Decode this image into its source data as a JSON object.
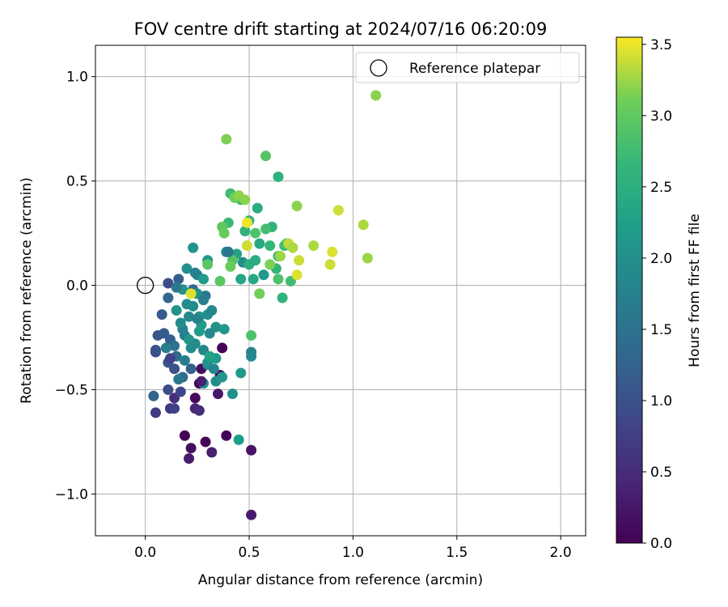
{
  "chart_data": {
    "type": "scatter",
    "title": "FOV centre drift starting at 2024/07/16 06:20:09",
    "xlabel": "Angular distance from reference (arcmin)",
    "ylabel": "Rotation from reference (arcmin)",
    "xlim": [
      -0.24,
      2.12
    ],
    "ylim": [
      -1.2,
      1.15
    ],
    "xticks": [
      0.0,
      0.5,
      1.0,
      1.5,
      2.0
    ],
    "xtick_labels": [
      "0.0",
      "0.5",
      "1.0",
      "1.5",
      "2.0"
    ],
    "yticks": [
      -1.0,
      -0.5,
      0.0,
      0.5,
      1.0
    ],
    "ytick_labels": [
      "−1.0",
      "−0.5",
      "0.0",
      "0.5",
      "1.0"
    ],
    "grid": true,
    "legend": {
      "position": "top-right",
      "entries": [
        "Reference platepar"
      ]
    },
    "reference_point": {
      "x": 0.0,
      "y": 0.0,
      "label": "Reference platepar"
    },
    "colorbar": {
      "label": "Hours from first FF file",
      "range": [
        0.0,
        3.55
      ],
      "ticks": [
        0.0,
        0.5,
        1.0,
        1.5,
        2.0,
        2.5,
        3.0,
        3.5
      ],
      "tick_labels": [
        "0.0",
        "0.5",
        "1.0",
        "1.5",
        "2.0",
        "2.5",
        "3.0",
        "3.5"
      ],
      "colormap": "viridis"
    },
    "points": [
      [
        0.19,
        -0.72,
        0.05
      ],
      [
        0.22,
        -0.78,
        0.15
      ],
      [
        0.21,
        -0.83,
        0.3
      ],
      [
        0.29,
        -0.75,
        0.05
      ],
      [
        0.32,
        -0.8,
        0.35
      ],
      [
        0.39,
        -0.72,
        0.05
      ],
      [
        0.51,
        -0.79,
        0.2
      ],
      [
        0.51,
        -1.1,
        0.3
      ],
      [
        0.24,
        -0.54,
        0.1
      ],
      [
        0.35,
        -0.52,
        0.25
      ],
      [
        0.26,
        -0.47,
        0.05
      ],
      [
        0.36,
        -0.43,
        0.1
      ],
      [
        0.37,
        -0.3,
        0.05
      ],
      [
        0.27,
        -0.4,
        0.15
      ],
      [
        0.24,
        -0.59,
        0.4
      ],
      [
        0.26,
        -0.6,
        0.5
      ],
      [
        0.14,
        -0.54,
        0.55
      ],
      [
        0.12,
        -0.59,
        0.65
      ],
      [
        0.14,
        -0.59,
        0.8
      ],
      [
        0.17,
        -0.51,
        0.85
      ],
      [
        0.05,
        -0.61,
        0.7
      ],
      [
        0.04,
        -0.53,
        1.25
      ],
      [
        0.11,
        -0.5,
        0.95
      ],
      [
        0.05,
        -0.32,
        0.9
      ],
      [
        0.05,
        -0.31,
        1.0
      ],
      [
        0.06,
        -0.24,
        1.05
      ],
      [
        0.09,
        -0.23,
        1.15
      ],
      [
        0.12,
        -0.26,
        1.2
      ],
      [
        0.11,
        -0.37,
        1.1
      ],
      [
        0.14,
        -0.4,
        1.0
      ],
      [
        0.08,
        -0.14,
        1.15
      ],
      [
        0.11,
        -0.06,
        1.3
      ],
      [
        0.11,
        0.01,
        0.95
      ],
      [
        0.16,
        0.03,
        1.2
      ],
      [
        0.22,
        -0.4,
        1.25
      ],
      [
        0.18,
        -0.44,
        1.35
      ],
      [
        0.15,
        -0.34,
        1.4
      ],
      [
        0.14,
        -0.29,
        1.5
      ],
      [
        0.19,
        -0.24,
        1.65
      ],
      [
        0.18,
        -0.21,
        1.75
      ],
      [
        0.21,
        -0.15,
        1.9
      ],
      [
        0.2,
        -0.09,
        1.95
      ],
      [
        0.18,
        -0.02,
        2.05
      ],
      [
        0.23,
        -0.1,
        1.95
      ],
      [
        0.26,
        -0.15,
        2.1
      ],
      [
        0.3,
        -0.14,
        2.0
      ],
      [
        0.32,
        -0.12,
        1.85
      ],
      [
        0.29,
        -0.05,
        1.6
      ],
      [
        0.23,
        -0.02,
        1.4
      ],
      [
        0.25,
        -0.04,
        2.0
      ],
      [
        0.2,
        0.08,
        2.0
      ],
      [
        0.23,
        0.18,
        2.05
      ],
      [
        0.25,
        0.05,
        1.85
      ],
      [
        0.3,
        0.12,
        2.1
      ],
      [
        0.28,
        0.03,
        2.2
      ],
      [
        0.34,
        -0.2,
        2.05
      ],
      [
        0.38,
        -0.21,
        2.1
      ],
      [
        0.34,
        -0.35,
        2.15
      ],
      [
        0.3,
        -0.38,
        1.8
      ],
      [
        0.28,
        -0.47,
        2.0
      ],
      [
        0.34,
        -0.46,
        1.95
      ],
      [
        0.37,
        -0.44,
        2.1
      ],
      [
        0.42,
        -0.52,
        2.0
      ],
      [
        0.51,
        -0.32,
        1.75
      ],
      [
        0.51,
        -0.34,
        1.85
      ],
      [
        0.46,
        -0.42,
        2.15
      ],
      [
        0.45,
        -0.74,
        2.2
      ],
      [
        0.39,
        0.16,
        1.85
      ],
      [
        0.47,
        0.11,
        1.95
      ],
      [
        0.44,
        0.15,
        2.3
      ],
      [
        0.52,
        0.03,
        2.4
      ],
      [
        0.57,
        0.05,
        2.15
      ],
      [
        0.46,
        0.03,
        2.35
      ],
      [
        0.5,
        0.1,
        2.5
      ],
      [
        0.53,
        0.12,
        2.45
      ],
      [
        0.55,
        0.2,
        2.4
      ],
      [
        0.54,
        0.37,
        2.45
      ],
      [
        0.48,
        0.26,
        2.55
      ],
      [
        0.5,
        0.31,
        2.6
      ],
      [
        0.6,
        0.19,
        2.65
      ],
      [
        0.61,
        0.28,
        2.55
      ],
      [
        0.63,
        0.08,
        2.6
      ],
      [
        0.64,
        0.14,
        2.7
      ],
      [
        0.67,
        0.19,
        2.75
      ],
      [
        0.66,
        -0.06,
        2.6
      ],
      [
        0.7,
        0.02,
        2.75
      ],
      [
        0.68,
        0.2,
        2.8
      ],
      [
        0.64,
        0.52,
        2.55
      ],
      [
        0.58,
        0.27,
        2.8
      ],
      [
        0.53,
        0.25,
        2.85
      ],
      [
        0.41,
        0.44,
        2.75
      ],
      [
        0.46,
        0.41,
        2.8
      ],
      [
        0.4,
        0.3,
        2.7
      ],
      [
        0.42,
        0.12,
        2.9
      ],
      [
        0.36,
        0.02,
        2.95
      ],
      [
        0.41,
        0.09,
        3.05
      ],
      [
        0.37,
        0.28,
        3.0
      ],
      [
        0.38,
        0.25,
        3.05
      ],
      [
        0.43,
        0.42,
        3.1
      ],
      [
        0.45,
        0.43,
        3.2
      ],
      [
        0.48,
        0.41,
        3.2
      ],
      [
        0.3,
        0.1,
        2.95
      ],
      [
        0.39,
        0.7,
        3.15
      ],
      [
        0.58,
        0.62,
        2.9
      ],
      [
        0.51,
        -0.24,
        2.85
      ],
      [
        0.55,
        -0.04,
        3.1
      ],
      [
        0.6,
        0.1,
        3.15
      ],
      [
        0.64,
        0.03,
        2.85
      ],
      [
        0.65,
        0.14,
        3.25
      ],
      [
        0.69,
        0.2,
        3.35
      ],
      [
        0.71,
        0.18,
        3.3
      ],
      [
        0.73,
        0.38,
        3.2
      ],
      [
        0.74,
        0.12,
        3.4
      ],
      [
        0.73,
        0.05,
        3.45
      ],
      [
        0.81,
        0.19,
        3.3
      ],
      [
        0.9,
        0.16,
        3.45
      ],
      [
        0.89,
        0.1,
        3.4
      ],
      [
        0.93,
        0.36,
        3.4
      ],
      [
        1.05,
        0.29,
        3.3
      ],
      [
        1.07,
        0.13,
        3.25
      ],
      [
        1.11,
        0.91,
        3.2
      ],
      [
        0.49,
        0.19,
        3.4
      ],
      [
        0.49,
        0.3,
        3.5
      ],
      [
        0.22,
        -0.04,
        3.45
      ],
      [
        0.3,
        -0.37,
        2.0
      ],
      [
        0.33,
        -0.4,
        1.8
      ],
      [
        0.22,
        -0.3,
        1.9
      ],
      [
        0.19,
        -0.36,
        1.7
      ],
      [
        0.16,
        -0.45,
        1.6
      ],
      [
        0.12,
        -0.35,
        0.8
      ],
      [
        0.1,
        -0.3,
        1.7
      ],
      [
        0.17,
        -0.18,
        1.95
      ],
      [
        0.15,
        -0.12,
        2.05
      ],
      [
        0.21,
        -0.26,
        2.1
      ],
      [
        0.26,
        -0.22,
        2.15
      ],
      [
        0.27,
        -0.19,
        2.2
      ],
      [
        0.24,
        -0.28,
        1.95
      ],
      [
        0.28,
        -0.31,
        1.85
      ],
      [
        0.31,
        -0.23,
        1.9
      ],
      [
        0.24,
        0.06,
        1.75
      ],
      [
        0.28,
        -0.07,
        1.7
      ],
      [
        0.4,
        0.16,
        1.6
      ],
      [
        0.31,
        -0.34,
        2.3
      ],
      [
        0.27,
        -0.46,
        0.35
      ],
      [
        0.25,
        -0.16,
        1.75
      ],
      [
        0.15,
        -0.01,
        1.6
      ]
    ]
  }
}
